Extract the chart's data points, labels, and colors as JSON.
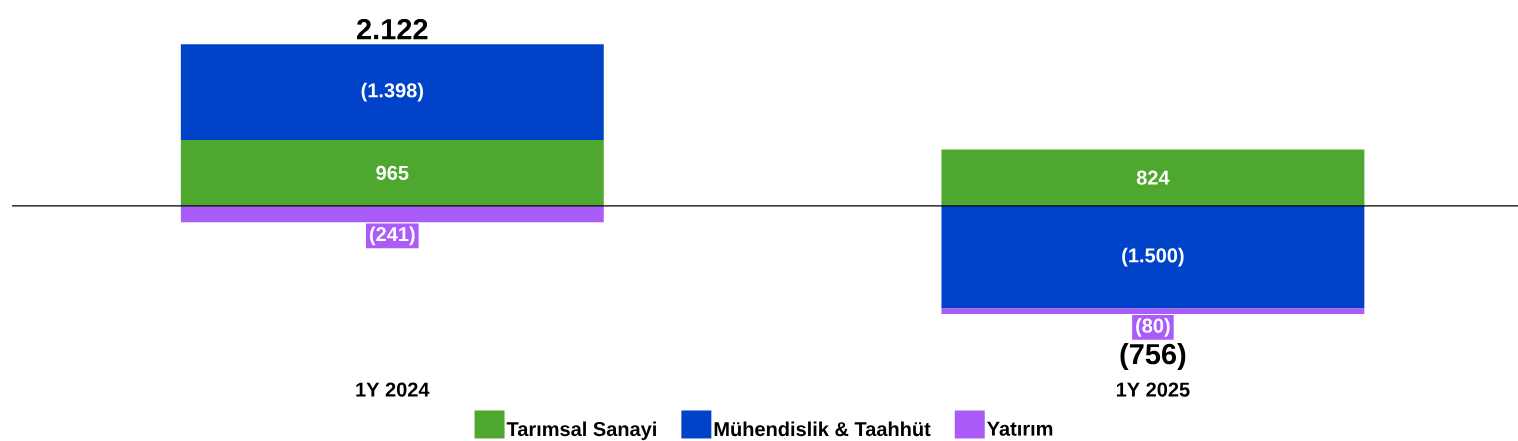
{
  "chart_data": {
    "type": "bar",
    "categories": [
      "1Y 2024",
      "1Y 2025"
    ],
    "stacked": true,
    "legend": "bottom",
    "series": [
      {
        "name": "Tarımsal Sanayi",
        "color": "#4ea72e",
        "values": [
          965,
          824
        ],
        "value_labels": [
          "965",
          "824"
        ]
      },
      {
        "name": "Mühendislik & Taahhüt",
        "color": "#0043c8",
        "values": [
          1398,
          -1500
        ],
        "value_labels": [
          "(1.398)",
          "(1.500)"
        ]
      },
      {
        "name": "Yatırım",
        "color": "#a95cf7",
        "values": [
          -241,
          -80
        ],
        "value_labels": [
          "(241)",
          "(80)"
        ]
      }
    ],
    "totals": [
      "2.122",
      "(756)"
    ]
  }
}
